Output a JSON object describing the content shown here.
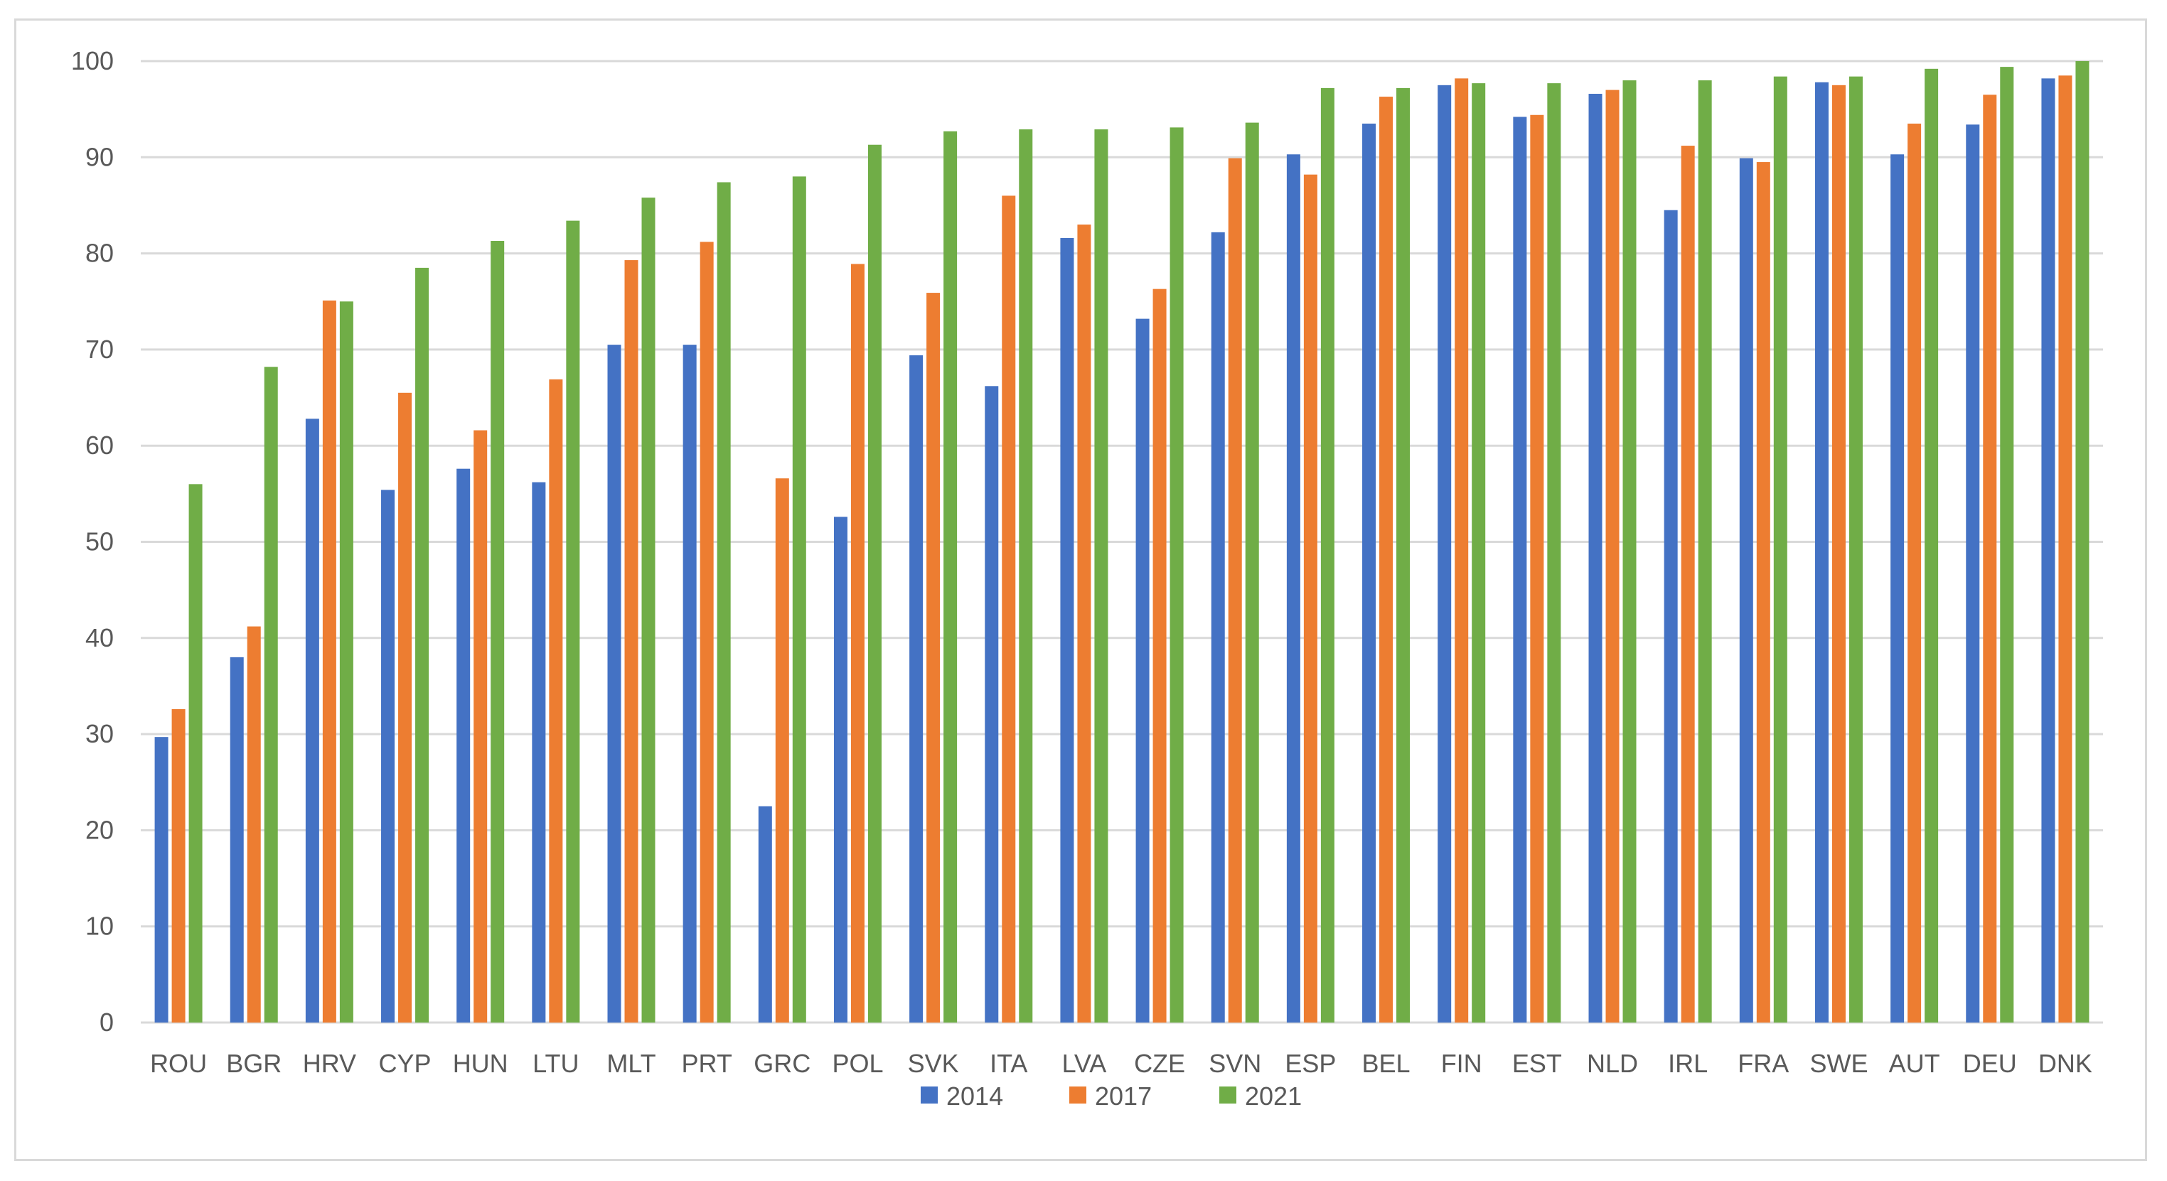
{
  "chart_data": {
    "type": "bar",
    "title": "",
    "xlabel": "",
    "ylabel": "",
    "ylim": [
      0,
      100
    ],
    "yticks": [
      0,
      10,
      20,
      30,
      40,
      50,
      60,
      70,
      80,
      90,
      100
    ],
    "grid": true,
    "legend_position": "bottom",
    "categories": [
      "ROU",
      "BGR",
      "HRV",
      "CYP",
      "HUN",
      "LTU",
      "MLT",
      "PRT",
      "GRC",
      "POL",
      "SVK",
      "ITA",
      "LVA",
      "CZE",
      "SVN",
      "ESP",
      "BEL",
      "FIN",
      "EST",
      "NLD",
      "IRL",
      "FRA",
      "SWE",
      "AUT",
      "DEU",
      "DNK"
    ],
    "series": [
      {
        "name": "2014",
        "color": "#4472c4",
        "values": [
          29.7,
          38.0,
          62.8,
          55.4,
          57.6,
          56.2,
          70.5,
          70.5,
          22.5,
          52.6,
          69.4,
          66.2,
          81.6,
          73.2,
          82.2,
          90.3,
          93.5,
          97.5,
          94.2,
          96.6,
          84.5,
          89.9,
          97.8,
          90.3,
          93.4,
          98.2
        ]
      },
      {
        "name": "2017",
        "color": "#ed7d31",
        "values": [
          32.6,
          41.2,
          75.1,
          65.5,
          61.6,
          66.9,
          79.3,
          81.2,
          56.6,
          78.9,
          75.9,
          86.0,
          83.0,
          76.3,
          89.9,
          88.2,
          96.3,
          98.2,
          94.4,
          97.0,
          91.2,
          89.5,
          97.5,
          93.5,
          96.5,
          98.5
        ]
      },
      {
        "name": "2021",
        "color": "#70ad47",
        "values": [
          56.0,
          68.2,
          75.0,
          78.5,
          81.3,
          83.4,
          85.8,
          87.4,
          88.0,
          91.3,
          92.7,
          92.9,
          92.9,
          93.1,
          93.6,
          97.2,
          97.2,
          97.7,
          97.7,
          98.0,
          98.0,
          98.4,
          98.4,
          99.2,
          99.4,
          100.0
        ]
      }
    ]
  }
}
